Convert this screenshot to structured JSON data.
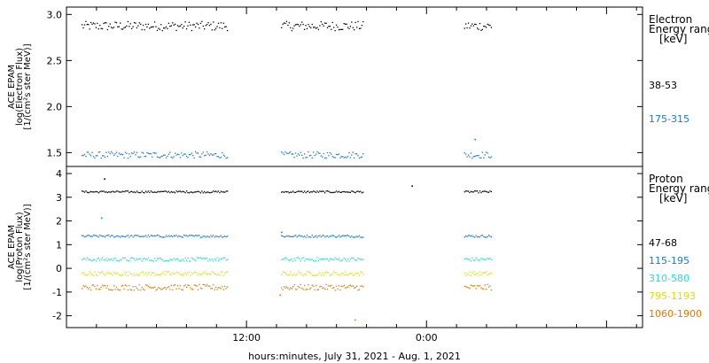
{
  "xlabel": "hours:minutes, July 31, 2021 - Aug.  1, 2021",
  "x_ticks": [
    {
      "label": "12:00",
      "x": 12
    },
    {
      "label": "0:00",
      "x": 24
    }
  ],
  "x_range": [
    0,
    38.4
  ],
  "colors": {
    "black": "#000000",
    "blue": "#1a78d0",
    "cyan": "#22dde0",
    "yellow": "#dde000",
    "orange": "#e07800"
  },
  "chart_data": [
    {
      "type": "scatter",
      "ylabel_lines": [
        "ACE EPAM",
        "log(Electron Flux)",
        "[1/(cm²s ster MeV)]"
      ],
      "ylim": [
        1.35,
        3.08
      ],
      "y_ticks": [
        1.5,
        2.0,
        2.5,
        3.0
      ],
      "y_tick_labels": [
        "1.5",
        "2.0",
        "2.5",
        "3.0"
      ],
      "legend_title": [
        "Electron",
        "Energy ranges",
        "[keV]"
      ],
      "series": [
        {
          "name": "38-53",
          "color": "#000000",
          "level": 2.88,
          "jitter": 0.05,
          "spikes": []
        },
        {
          "name": "175-315",
          "color": "#1a78d0",
          "level": 1.48,
          "jitter": 0.035,
          "spikes": [
            {
              "x": 27.2,
              "y": 1.65
            }
          ]
        }
      ],
      "gaps": [
        [
          0,
          1.0
        ],
        [
          10.7,
          14.3
        ],
        [
          19.8,
          26.5
        ],
        [
          28.3,
          38.4
        ]
      ]
    },
    {
      "type": "scatter",
      "ylabel_lines": [
        "ACE EPAM",
        "log(Proton Flux)",
        "[1/(cm²s ster MeV)]"
      ],
      "ylim": [
        -2.5,
        4.3
      ],
      "y_ticks": [
        -2,
        -1,
        0,
        1,
        2,
        3,
        4
      ],
      "y_tick_labels": [
        "-2",
        "-1",
        "0",
        "1",
        "2",
        "3",
        "4"
      ],
      "legend_title": [
        "Proton",
        "Energy ranges",
        "[keV]"
      ],
      "series": [
        {
          "name": "47-68",
          "color": "#000000",
          "level": 3.25,
          "jitter": 0.04,
          "spikes": [
            {
              "x": 2.5,
              "y": 3.8
            },
            {
              "x": 23.0,
              "y": 3.5
            }
          ]
        },
        {
          "name": "115-195",
          "color": "#1a78d0",
          "level": 1.38,
          "jitter": 0.05,
          "spikes": [
            {
              "x": 2.3,
              "y": 2.15
            },
            {
              "x": 14.3,
              "y": 1.55
            }
          ]
        },
        {
          "name": "310-580",
          "color": "#22dde0",
          "level": 0.4,
          "jitter": 0.08,
          "spikes": []
        },
        {
          "name": "795-1193",
          "color": "#dde000",
          "level": -0.2,
          "jitter": 0.09,
          "spikes": []
        },
        {
          "name": "1060-1900",
          "color": "#e07800",
          "level": -0.78,
          "jitter": 0.12,
          "spikes": [
            {
              "x": 14.2,
              "y": -1.1
            },
            {
              "x": 19.2,
              "y": -2.15
            }
          ]
        }
      ],
      "gaps": [
        [
          0,
          1.0
        ],
        [
          10.7,
          14.3
        ],
        [
          19.8,
          26.5
        ],
        [
          28.3,
          38.4
        ]
      ]
    }
  ]
}
